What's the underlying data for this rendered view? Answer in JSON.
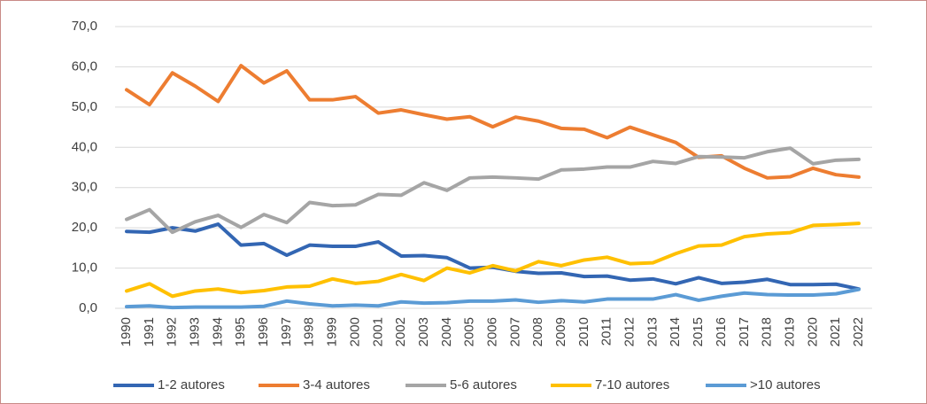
{
  "chart_data": {
    "type": "line",
    "categories": [
      "1990",
      "1991",
      "1992",
      "1993",
      "1994",
      "1995",
      "1996",
      "1997",
      "1998",
      "1999",
      "2000",
      "2001",
      "2002",
      "2003",
      "2004",
      "2005",
      "2006",
      "2007",
      "2008",
      "2009",
      "2010",
      "2011",
      "2012",
      "2013",
      "2014",
      "2015",
      "2016",
      "2017",
      "2018",
      "2019",
      "2020",
      "2021",
      "2022"
    ],
    "series": [
      {
        "name": "1-2 autores",
        "color": "#3366b3",
        "values": [
          19.1,
          18.9,
          20,
          19.2,
          20.9,
          15.7,
          16.1,
          13.2,
          15.7,
          15.4,
          15.4,
          16.5,
          13,
          13.1,
          12.6,
          10,
          10.2,
          9.2,
          8.7,
          8.8,
          7.9,
          8,
          7,
          7.3,
          6.1,
          7.6,
          6.2,
          6.5,
          7.2,
          5.9,
          5.9,
          6,
          4.8
        ]
      },
      {
        "name": "3-4 autores",
        "color": "#ed7d31",
        "values": [
          54.3,
          50.6,
          58.5,
          55.2,
          51.4,
          60.3,
          56,
          59,
          51.8,
          51.8,
          52.6,
          48.5,
          49.3,
          48.1,
          47,
          47.6,
          45.1,
          47.5,
          46.5,
          44.7,
          44.5,
          42.4,
          45,
          43.1,
          41.2,
          37.5,
          37.9,
          34.8,
          32.4,
          32.7,
          34.8,
          33.2,
          32.6
        ]
      },
      {
        "name": "5-6 autores",
        "color": "#a5a5a5",
        "values": [
          22.1,
          24.5,
          18.9,
          21.5,
          23.1,
          20.1,
          23.3,
          21.3,
          26.3,
          25.5,
          25.7,
          28.3,
          28.1,
          31.2,
          29.3,
          32.4,
          32.6,
          32.4,
          32.1,
          34.4,
          34.6,
          35.1,
          35.1,
          36.5,
          36,
          37.7,
          37.6,
          37.4,
          38.9,
          39.8,
          35.9,
          36.8,
          37
        ]
      },
      {
        "name": "7-10 autores",
        "color": "#ffc000",
        "values": [
          4.3,
          6.1,
          3,
          4.3,
          4.8,
          3.9,
          4.4,
          5.3,
          5.5,
          7.3,
          6.2,
          6.7,
          8.4,
          6.9,
          10,
          8.8,
          10.6,
          9.3,
          11.6,
          10.6,
          12,
          12.7,
          11.1,
          11.3,
          13.6,
          15.5,
          15.7,
          17.8,
          18.5,
          18.8,
          20.6,
          20.8,
          21.1
        ]
      },
      {
        "name": ">10 autores",
        "color": "#5b9bd5",
        "values": [
          0.4,
          0.6,
          0.2,
          0.3,
          0.3,
          0.3,
          0.5,
          1.8,
          1.1,
          0.6,
          0.8,
          0.6,
          1.6,
          1.3,
          1.4,
          1.8,
          1.8,
          2.1,
          1.5,
          1.9,
          1.6,
          2.3,
          2.3,
          2.3,
          3.4,
          2,
          3,
          3.8,
          3.4,
          3.3,
          3.3,
          3.6,
          4.7
        ]
      }
    ],
    "ylim": [
      0,
      70
    ],
    "yticks": [
      {
        "value": 0,
        "label": "0,0"
      },
      {
        "value": 10,
        "label": "10,0"
      },
      {
        "value": 20,
        "label": "20,0"
      },
      {
        "value": 30,
        "label": "30,0"
      },
      {
        "value": 40,
        "label": "40,0"
      },
      {
        "value": 50,
        "label": "50,0"
      },
      {
        "value": 60,
        "label": "60,0"
      },
      {
        "value": 70,
        "label": "70,0"
      }
    ],
    "grid": true,
    "legend": "bottom"
  }
}
